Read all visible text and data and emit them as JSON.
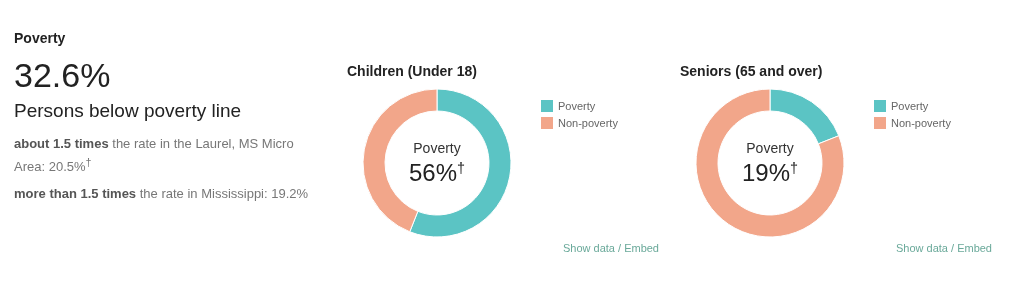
{
  "chart_data": [
    {
      "type": "other",
      "title": "Poverty",
      "annotations": [
        "32.6%",
        "Persons below poverty line",
        "about 1.5 times",
        "the rate in the Laurel, MS Micro Area: 20.5%$^{†}$",
        "more than 1.5 times",
        "the rate in Mississippi: 19.2%"
      ]
    },
    {
      "type": "donut",
      "title": "Children (Under 18)",
      "categories": [
        "Poverty",
        "Non-poverty"
      ],
      "values": [
        56,
        44
      ],
      "colors": [
        "#5bc4c4",
        "#f2a68a"
      ],
      "legend": "right",
      "annotations": [
        "Poverty",
        "56%$^{†}$",
        "Show data / Embed"
      ]
    },
    {
      "type": "donut",
      "title": "Seniors (65 and over)",
      "categories": [
        "Poverty",
        "Non-poverty"
      ],
      "values": [
        19,
        81
      ],
      "colors": [
        "#5bc4c4",
        "#f2a68a"
      ],
      "legend": "right",
      "annotations": [
        "Poverty",
        "19%$^{†}$",
        "Show data / Embed"
      ]
    }
  ]
}
